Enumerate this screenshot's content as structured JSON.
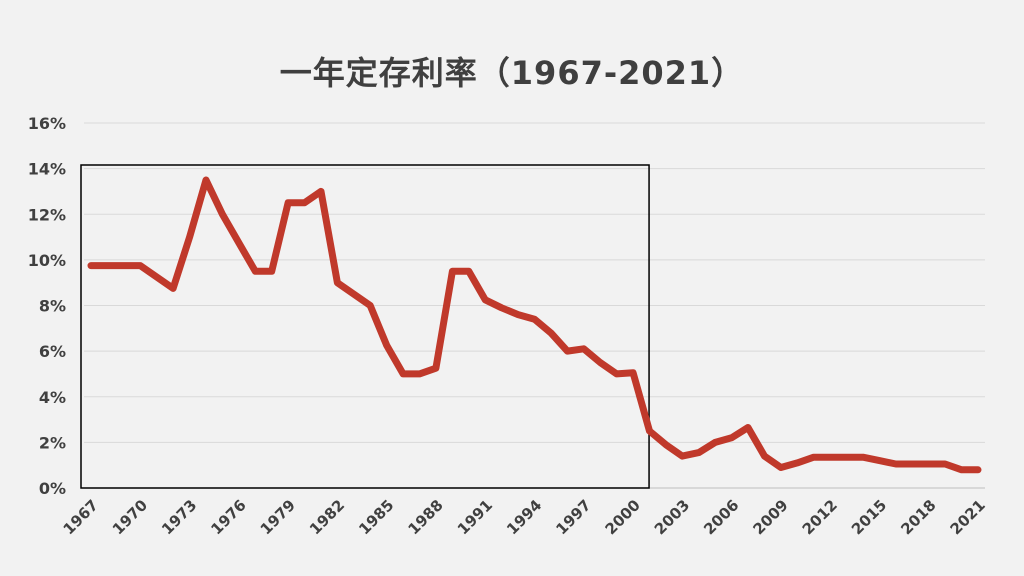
{
  "chart_data": {
    "type": "line",
    "title": "一年定存利率（1967-2021）",
    "xlabel": "",
    "ylabel": "",
    "ylim": [
      0,
      16
    ],
    "y_ticks": [
      "0%",
      "2%",
      "4%",
      "6%",
      "8%",
      "10%",
      "12%",
      "14%",
      "16%"
    ],
    "x_tick_labels": [
      "1967",
      "1970",
      "1973",
      "1976",
      "1979",
      "1982",
      "1985",
      "1988",
      "1991",
      "1994",
      "1997",
      "2000",
      "2003",
      "2006",
      "2009",
      "2012",
      "2015",
      "2018",
      "2021"
    ],
    "grid": "horizontal",
    "highlight_range": [
      1967,
      2000
    ],
    "series": [
      {
        "color": "#c0392b",
        "x": [
          1967,
          1968,
          1969,
          1970,
          1971,
          1972,
          1973,
          1974,
          1975,
          1976,
          1977,
          1978,
          1979,
          1980,
          1981,
          1982,
          1983,
          1984,
          1985,
          1986,
          1987,
          1988,
          1989,
          1990,
          1991,
          1992,
          1993,
          1994,
          1995,
          1996,
          1997,
          1998,
          1999,
          2000,
          2001,
          2002,
          2003,
          2004,
          2005,
          2006,
          2007,
          2008,
          2009,
          2010,
          2011,
          2012,
          2013,
          2014,
          2015,
          2016,
          2017,
          2018,
          2019,
          2020,
          2021
        ],
        "y": [
          9.75,
          9.75,
          9.75,
          9.75,
          9.25,
          8.75,
          11.0,
          13.5,
          12.0,
          10.75,
          9.5,
          9.5,
          12.5,
          12.5,
          13.0,
          9.0,
          8.5,
          8.0,
          6.25,
          5.0,
          5.0,
          5.25,
          9.5,
          9.5,
          8.25,
          7.9,
          7.6,
          7.4,
          6.8,
          6.0,
          6.1,
          5.5,
          5.0,
          5.05,
          2.5,
          1.9,
          1.4,
          1.55,
          2.0,
          2.2,
          2.65,
          1.4,
          0.9,
          1.1,
          1.35,
          1.35,
          1.35,
          1.35,
          1.2,
          1.05,
          1.05,
          1.05,
          1.05,
          0.8,
          0.8
        ]
      }
    ]
  }
}
